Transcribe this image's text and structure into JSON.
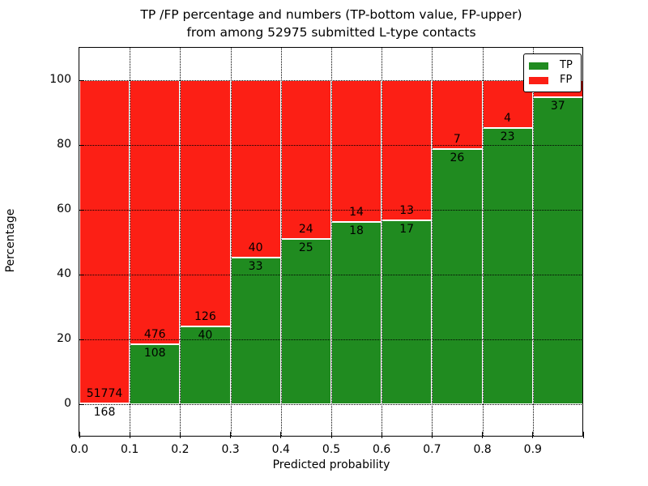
{
  "title": {
    "line1": "TP /FP percentage and numbers (TP-bottom value, FP-upper)",
    "line2": "from among 52975 submitted L-type contacts"
  },
  "axes": {
    "xlabel": "Predicted probability",
    "ylabel": "Percentage",
    "x_tick_labels": [
      "0.0",
      "0.1",
      "0.2",
      "0.3",
      "0.4",
      "0.5",
      "0.6",
      "0.7",
      "0.8",
      "0.9"
    ],
    "y_tick_labels": [
      "0",
      "20",
      "40",
      "60",
      "80",
      "100"
    ],
    "y_tick_values": [
      0,
      20,
      40,
      60,
      80,
      100
    ]
  },
  "legend": {
    "items": [
      {
        "label": "TP",
        "color": "#208b20"
      },
      {
        "label": "FP",
        "color": "#fc1f15"
      }
    ],
    "position": "upper right"
  },
  "colors": {
    "tp": "#208b20",
    "fp": "#fc1f15",
    "bar_edge": "#ffffff",
    "grid": "#000000",
    "text": "#000000",
    "background": "#ffffff"
  },
  "chart_data": {
    "type": "bar",
    "stacked": true,
    "title": "TP /FP percentage and numbers (TP-bottom value, FP-upper) from among 52975 submitted L-type contacts",
    "xlabel": "Predicted probability",
    "ylabel": "Percentage",
    "xlim": [
      0.0,
      1.0
    ],
    "ylim": [
      -10,
      110
    ],
    "grid": "dotted",
    "legend_position": "upper right",
    "total_contacts": 52975,
    "bin_width": 0.1,
    "bin_starts": [
      0.0,
      0.1,
      0.2,
      0.3,
      0.4,
      0.5,
      0.6,
      0.7,
      0.8,
      0.9
    ],
    "series": [
      {
        "name": "TP",
        "counts": [
          168,
          108,
          40,
          33,
          25,
          18,
          17,
          26,
          23,
          37
        ],
        "pct": [
          0.32,
          18.49,
          24.1,
          45.21,
          51.02,
          56.25,
          56.67,
          78.79,
          85.19,
          94.87
        ]
      },
      {
        "name": "FP",
        "counts": [
          51774,
          476,
          126,
          40,
          24,
          14,
          13,
          7,
          4,
          null
        ],
        "pct": [
          99.68,
          81.51,
          75.9,
          54.79,
          48.98,
          43.75,
          43.33,
          21.21,
          14.81,
          5.13
        ]
      }
    ],
    "tp_count_labels": [
      "168",
      "108",
      "40",
      "33",
      "25",
      "18",
      "17",
      "26",
      "23",
      "37"
    ],
    "fp_count_labels": [
      "51774",
      "476",
      "126",
      "40",
      "24",
      "14",
      "13",
      "7",
      "4",
      ""
    ]
  }
}
